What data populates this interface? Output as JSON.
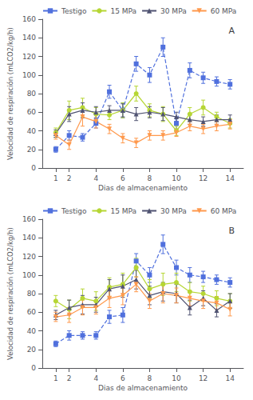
{
  "chart_data": [
    {
      "type": "line",
      "annotation": "A",
      "xlabel": "Dias de almacenamiento",
      "ylabel": "Velocidad de respiración (mLCO2/kg/h)",
      "x": [
        1,
        2,
        3,
        4,
        5,
        6,
        7,
        8,
        9,
        10,
        11,
        12,
        13,
        14
      ],
      "xlim": [
        0,
        15
      ],
      "xticks": [
        1,
        2,
        4,
        6,
        8,
        10,
        12,
        14
      ],
      "ylim": [
        0,
        160
      ],
      "yticks": [
        0,
        20,
        40,
        60,
        80,
        100,
        120,
        140,
        160
      ],
      "grid": false,
      "legend": "upper left",
      "series": [
        {
          "name": "Testigo",
          "marker": "square",
          "line_style": "dashed",
          "values": [
            20,
            35,
            33,
            48,
            82,
            62,
            112,
            100,
            130,
            48,
            105,
            97,
            93,
            90
          ],
          "errors": [
            3,
            5,
            4,
            5,
            7,
            8,
            8,
            8,
            10,
            6,
            8,
            6,
            5,
            5
          ]
        },
        {
          "name": "15 MPa",
          "marker": "circle",
          "line_style": "solid",
          "values": [
            38,
            62,
            65,
            58,
            57,
            62,
            80,
            62,
            58,
            40,
            58,
            65,
            55,
            48
          ],
          "errors": [
            5,
            10,
            10,
            7,
            5,
            8,
            8,
            7,
            8,
            5,
            7,
            8,
            5,
            5
          ]
        },
        {
          "name": "30 MPa",
          "marker": "triangle",
          "line_style": "solid",
          "values": [
            37,
            58,
            62,
            60,
            62,
            62,
            58,
            60,
            58,
            55,
            52,
            50,
            52,
            52
          ],
          "errors": [
            4,
            8,
            8,
            6,
            5,
            7,
            7,
            6,
            7,
            5,
            5,
            5,
            5,
            5
          ]
        },
        {
          "name": "60 MPa",
          "marker": "triangle-down",
          "line_style": "solid",
          "values": [
            35,
            25,
            55,
            50,
            42,
            32,
            27,
            35,
            35,
            38,
            45,
            42,
            45,
            47
          ],
          "errors": [
            4,
            5,
            10,
            7,
            5,
            5,
            5,
            5,
            5,
            4,
            5,
            5,
            5,
            5
          ]
        }
      ]
    },
    {
      "type": "line",
      "annotation": "B",
      "xlabel": "Dias de almacenamiento",
      "ylabel": "Velocidad de respiración (mLCO2/kg/h)",
      "x": [
        1,
        2,
        3,
        4,
        5,
        6,
        7,
        8,
        9,
        10,
        11,
        12,
        13,
        14
      ],
      "xlim": [
        0,
        15
      ],
      "xticks": [
        1,
        2,
        4,
        6,
        8,
        10,
        12,
        14
      ],
      "ylim": [
        0,
        160
      ],
      "yticks": [
        0,
        20,
        40,
        60,
        80,
        100,
        120,
        140,
        160
      ],
      "grid": false,
      "legend": "upper left",
      "series": [
        {
          "name": "Testigo",
          "marker": "square",
          "line_style": "dashed",
          "values": [
            26,
            35,
            35,
            35,
            55,
            57,
            115,
            100,
            133,
            108,
            100,
            98,
            95,
            92
          ],
          "errors": [
            3,
            5,
            4,
            4,
            7,
            8,
            8,
            8,
            10,
            8,
            8,
            6,
            5,
            5
          ]
        },
        {
          "name": "15 MPa",
          "marker": "circle",
          "line_style": "solid",
          "values": [
            72,
            63,
            75,
            72,
            87,
            90,
            108,
            85,
            90,
            92,
            82,
            80,
            75,
            72
          ],
          "errors": [
            6,
            10,
            10,
            10,
            10,
            12,
            10,
            10,
            12,
            10,
            10,
            8,
            8,
            8
          ]
        },
        {
          "name": "30 MPa",
          "marker": "triangle",
          "line_style": "solid",
          "values": [
            57,
            65,
            68,
            68,
            85,
            88,
            95,
            78,
            82,
            80,
            65,
            75,
            62,
            72
          ],
          "errors": [
            5,
            8,
            10,
            8,
            10,
            12,
            10,
            10,
            10,
            10,
            8,
            8,
            7,
            8
          ]
        },
        {
          "name": "60 MPa",
          "marker": "triangle-down",
          "line_style": "solid",
          "values": [
            55,
            57,
            65,
            65,
            75,
            78,
            90,
            72,
            80,
            78,
            75,
            72,
            70,
            63
          ],
          "errors": [
            5,
            8,
            8,
            7,
            10,
            10,
            8,
            8,
            10,
            8,
            8,
            8,
            7,
            7
          ]
        }
      ]
    }
  ]
}
